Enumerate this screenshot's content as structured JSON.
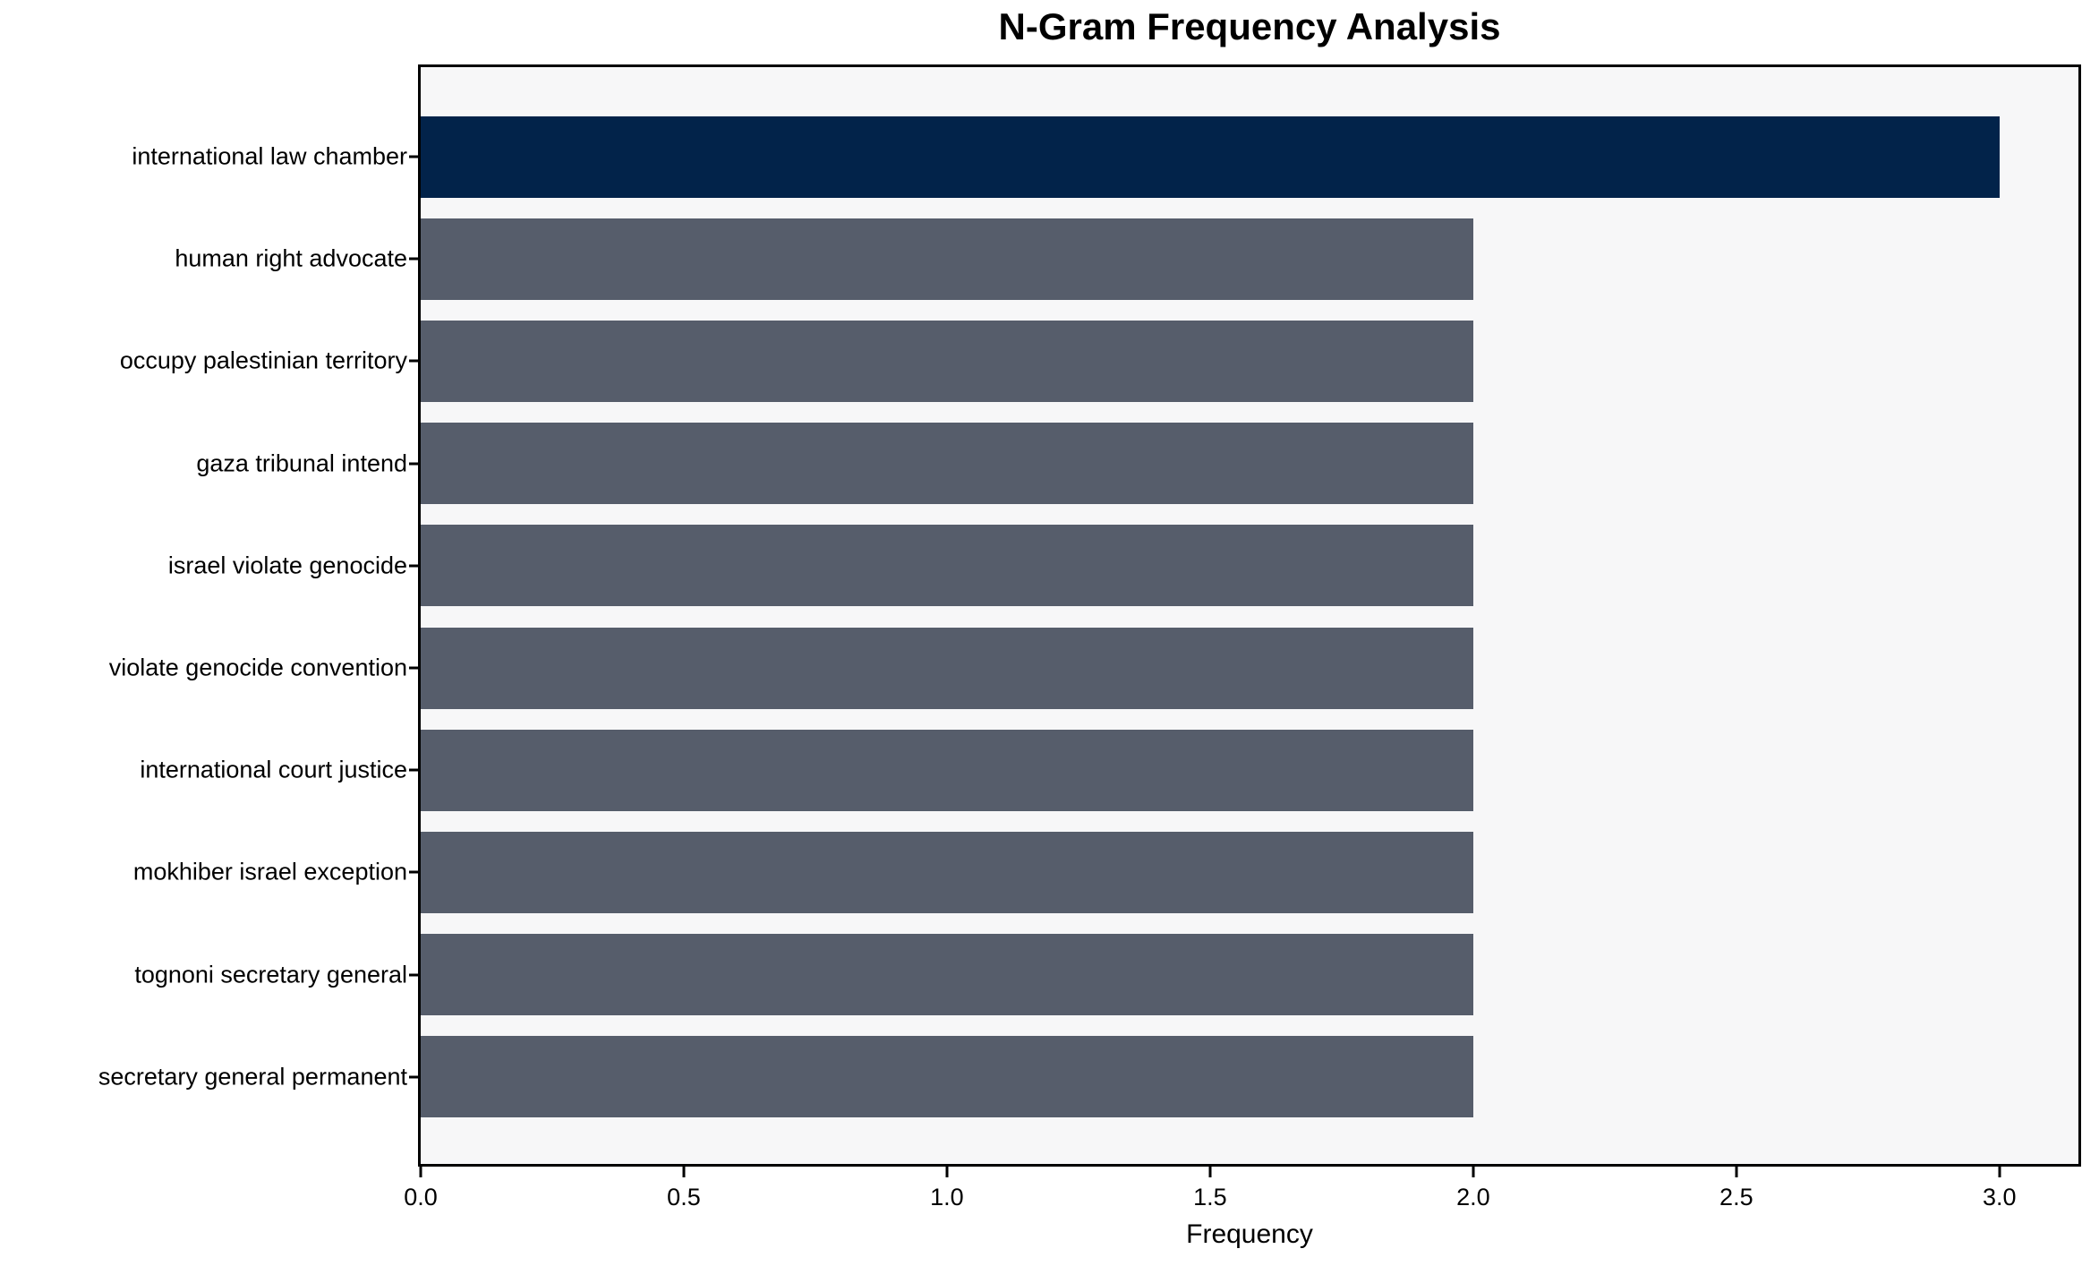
{
  "chart_data": {
    "type": "bar",
    "orientation": "horizontal",
    "title": "N-Gram Frequency Analysis",
    "xlabel": "Frequency",
    "ylabel": "",
    "categories": [
      "international law chamber",
      "human right advocate",
      "occupy palestinian territory",
      "gaza tribunal intend",
      "israel violate genocide",
      "violate genocide convention",
      "international court justice",
      "mokhiber israel exception",
      "tognoni secretary general",
      "secretary general permanent"
    ],
    "values": [
      3,
      2,
      2,
      2,
      2,
      2,
      2,
      2,
      2,
      2
    ],
    "bar_colors": [
      "#02234a",
      "#565d6b",
      "#565d6b",
      "#565d6b",
      "#565d6b",
      "#565d6b",
      "#565d6b",
      "#565d6b",
      "#565d6b",
      "#565d6b"
    ],
    "xlim": [
      0,
      3.15
    ],
    "xticks": [
      0.0,
      0.5,
      1.0,
      1.5,
      2.0,
      2.5,
      3.0
    ],
    "xtick_labels": [
      "0.0",
      "0.5",
      "1.0",
      "1.5",
      "2.0",
      "2.5",
      "3.0"
    ],
    "grid": false,
    "legend": null,
    "colors": {
      "highlight_bar": "#02234a",
      "default_bar": "#565d6b",
      "plot_background": "#f7f7f8",
      "figure_background": "#ffffff",
      "spine": "#000000",
      "text": "#000000"
    }
  }
}
